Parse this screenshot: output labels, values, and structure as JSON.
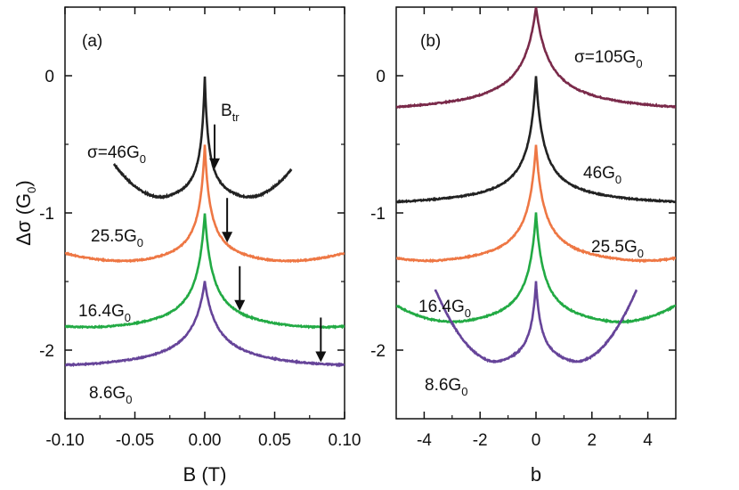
{
  "chart_data": [
    {
      "type": "line",
      "panel_label": "(a)",
      "xlabel": "B (T)",
      "ylabel": "Δσ (G0)",
      "ylabel_parts": {
        "base": "Δσ (G",
        "sub": "0",
        "tail": ")"
      },
      "xlim": [
        -0.1,
        0.1
      ],
      "ylim": [
        -2.5,
        0.5
      ],
      "xticks": [
        -0.1,
        -0.05,
        0.0,
        0.05,
        0.1
      ],
      "xtick_labels": [
        "-0.10",
        "-0.05",
        "0.00",
        "0.05",
        "0.10"
      ],
      "yticks": [
        0,
        -1,
        -2
      ],
      "ytick_labels": [
        "0",
        "-1",
        "-2"
      ],
      "arrow_label": {
        "base": "B",
        "sub": "tr"
      },
      "series": [
        {
          "name": "σ=46G0",
          "label_base": "σ=46G",
          "label_sub": "0",
          "color": "#222222",
          "peak": 0.0,
          "base": -0.97,
          "gamma": 0.0028,
          "xrange": [
            -0.065,
            0.062
          ],
          "wing_min": -0.025,
          "wing_curv": 180,
          "arrow_x": 0.007
        },
        {
          "name": "25.5G0",
          "label_base": "25.5G",
          "label_sub": "0",
          "color": "#ee7744",
          "peak": -0.5,
          "base": -1.42,
          "gamma": 0.0042,
          "xrange": [
            -0.1,
            0.1
          ],
          "wing_min": -0.04,
          "wing_curv": 25,
          "arrow_x": 0.016
        },
        {
          "name": "16.4G0",
          "label_base": "16.4G",
          "label_sub": "0",
          "color": "#22aa44",
          "peak": -1.0,
          "base": -1.9,
          "gamma": 0.006,
          "xrange": [
            -0.1,
            0.1
          ],
          "wing_min": -0.06,
          "wing_curv": 14,
          "arrow_x": 0.025
        },
        {
          "name": "8.6G0",
          "label_base": "8.6G",
          "label_sub": "0",
          "color": "#664499",
          "peak": -1.5,
          "base": -2.17,
          "gamma": 0.0095,
          "xrange": [
            -0.1,
            0.1
          ],
          "wing_min": -0.07,
          "wing_curv": 5,
          "arrow_x": 0.083
        }
      ]
    },
    {
      "type": "line",
      "panel_label": "(b)",
      "xlabel": "b",
      "xlim": [
        -5,
        5
      ],
      "ylim": [
        -2.5,
        0.5
      ],
      "xticks": [
        -4,
        -2,
        0,
        2,
        4
      ],
      "xtick_labels": [
        "-4",
        "-2",
        "0",
        "2",
        "4"
      ],
      "yticks": [
        0,
        -1,
        -2
      ],
      "ytick_labels": [
        "0",
        "-1",
        "-2"
      ],
      "series": [
        {
          "name": "σ=105G0",
          "label_base": "σ=105G",
          "label_sub": "0",
          "color": "#7a2a4a",
          "peak": 0.5,
          "base": -0.3,
          "gamma": 0.5,
          "xrange": [
            -5,
            5
          ],
          "wing_min": -5,
          "wing_curv": 0
        },
        {
          "name": "46G0",
          "label_base": "46G",
          "label_sub": "0",
          "color": "#222222",
          "peak": 0.0,
          "base": -0.97,
          "gamma": 0.28,
          "xrange": [
            -5,
            5
          ],
          "wing_min": -5,
          "wing_curv": 0
        },
        {
          "name": "25.5G0",
          "label_base": "25.5G",
          "label_sub": "0",
          "color": "#ee7744",
          "peak": -0.5,
          "base": -1.42,
          "gamma": 0.3,
          "xrange": [
            -5,
            5
          ],
          "wing_min": -3.2,
          "wing_curv": 0.012
        },
        {
          "name": "16.4G0",
          "label_base": "16.4G",
          "label_sub": "0",
          "color": "#22aa44",
          "peak": -1.0,
          "base": -1.88,
          "gamma": 0.3,
          "xrange": [
            -5,
            5
          ],
          "wing_min": -2.5,
          "wing_curv": 0.025
        },
        {
          "name": "8.6G0",
          "label_base": "8.6G",
          "label_sub": "0",
          "color": "#664499",
          "peak": -1.5,
          "base": -2.17,
          "gamma": 0.2,
          "xrange": [
            -3.6,
            3.6
          ],
          "wing_min": -1.2,
          "wing_curv": 0.1
        }
      ]
    }
  ]
}
